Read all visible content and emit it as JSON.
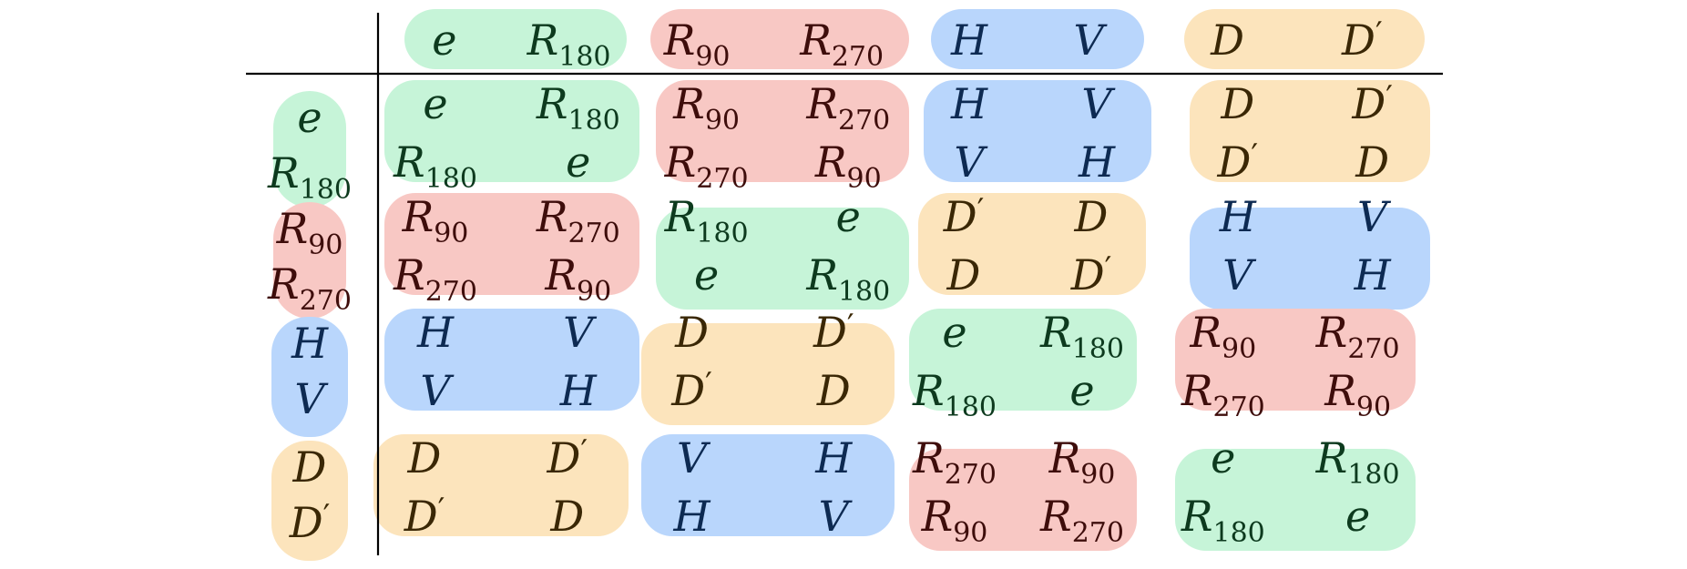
{
  "colors": {
    "green": "#c6f4d8",
    "red": "#f8c8c4",
    "blue": "#b9d6fc",
    "orange": "#fce4bc",
    "text_green": "#0d3a1e",
    "text_red": "#3e0d0b",
    "text_blue": "#0d2a52",
    "text_orange": "#3a2705",
    "line": "#000000"
  },
  "table": {
    "column_headers": [
      {
        "group": "green",
        "elements": [
          "e",
          "R180"
        ]
      },
      {
        "group": "red",
        "elements": [
          "R90",
          "R270"
        ]
      },
      {
        "group": "blue",
        "elements": [
          "H",
          "V"
        ]
      },
      {
        "group": "orange",
        "elements": [
          "D",
          "D′"
        ]
      }
    ],
    "row_headers": [
      {
        "group": "green",
        "elements": [
          "e",
          "R180"
        ]
      },
      {
        "group": "red",
        "elements": [
          "R90",
          "R270"
        ]
      },
      {
        "group": "blue",
        "elements": [
          "H",
          "V"
        ]
      },
      {
        "group": "orange",
        "elements": [
          "D",
          "D′"
        ]
      }
    ],
    "cells": [
      [
        {
          "group": "green",
          "rows": [
            [
              "e",
              "R180"
            ],
            [
              "R180",
              "e"
            ]
          ]
        },
        {
          "group": "red",
          "rows": [
            [
              "R90",
              "R270"
            ],
            [
              "R270",
              "R90"
            ]
          ]
        },
        {
          "group": "blue",
          "rows": [
            [
              "H",
              "V"
            ],
            [
              "V",
              "H"
            ]
          ]
        },
        {
          "group": "orange",
          "rows": [
            [
              "D",
              "D′"
            ],
            [
              "D′",
              "D"
            ]
          ]
        }
      ],
      [
        {
          "group": "red",
          "rows": [
            [
              "R90",
              "R270"
            ],
            [
              "R270",
              "R90"
            ]
          ]
        },
        {
          "group": "green",
          "rows": [
            [
              "R180",
              "e"
            ],
            [
              "e",
              "R180"
            ]
          ]
        },
        {
          "group": "orange",
          "rows": [
            [
              "D′",
              "D"
            ],
            [
              "D",
              "D′"
            ]
          ]
        },
        {
          "group": "blue",
          "rows": [
            [
              "H",
              "V"
            ],
            [
              "V",
              "H"
            ]
          ]
        }
      ],
      [
        {
          "group": "blue",
          "rows": [
            [
              "H",
              "V"
            ],
            [
              "V",
              "H"
            ]
          ]
        },
        {
          "group": "orange",
          "rows": [
            [
              "D",
              "D′"
            ],
            [
              "D′",
              "D"
            ]
          ]
        },
        {
          "group": "green",
          "rows": [
            [
              "e",
              "R180"
            ],
            [
              "R180",
              "e"
            ]
          ]
        },
        {
          "group": "red",
          "rows": [
            [
              "R90",
              "R270"
            ],
            [
              "R270",
              "R90"
            ]
          ]
        }
      ],
      [
        {
          "group": "orange",
          "rows": [
            [
              "D",
              "D′"
            ],
            [
              "D′",
              "D"
            ]
          ]
        },
        {
          "group": "blue",
          "rows": [
            [
              "V",
              "H"
            ],
            [
              "H",
              "V"
            ]
          ]
        },
        {
          "group": "red",
          "rows": [
            [
              "R270",
              "R90"
            ],
            [
              "R90",
              "R270"
            ]
          ]
        },
        {
          "group": "green",
          "rows": [
            [
              "e",
              "R180"
            ],
            [
              "R180",
              "e"
            ]
          ]
        }
      ]
    ]
  }
}
